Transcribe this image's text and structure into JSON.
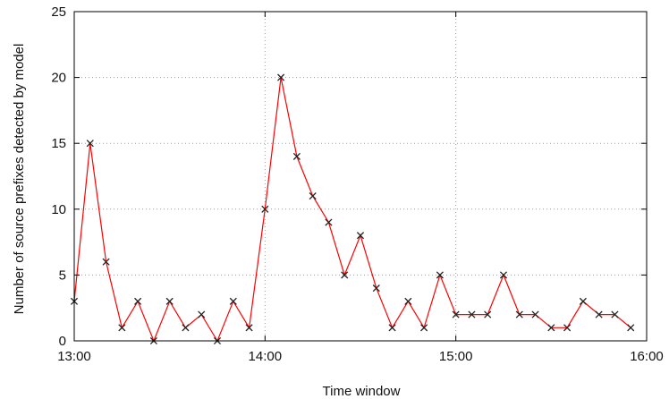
{
  "chart_data": {
    "type": "line",
    "title": "",
    "xlabel": "Time window",
    "ylabel": "Number of source prefixes detected by model",
    "x_unit": "minutes",
    "xlim": [
      780,
      960
    ],
    "ylim": [
      0,
      25
    ],
    "grid": true,
    "x_ticks": [
      {
        "value": 780,
        "label": "13:00"
      },
      {
        "value": 840,
        "label": "14:00"
      },
      {
        "value": 900,
        "label": "15:00"
      },
      {
        "value": 960,
        "label": "16:00"
      }
    ],
    "y_ticks": [
      {
        "value": 0,
        "label": "0"
      },
      {
        "value": 5,
        "label": "5"
      },
      {
        "value": 10,
        "label": "10"
      },
      {
        "value": 15,
        "label": "15"
      },
      {
        "value": 20,
        "label": "20"
      },
      {
        "value": 25,
        "label": "25"
      }
    ],
    "series": [
      {
        "name": "",
        "color": "#ff0000",
        "marker": "x",
        "marker_color": "#222222",
        "points": [
          {
            "x": 780,
            "y": 3
          },
          {
            "x": 785,
            "y": 15
          },
          {
            "x": 790,
            "y": 6
          },
          {
            "x": 795,
            "y": 1
          },
          {
            "x": 800,
            "y": 3
          },
          {
            "x": 805,
            "y": 0
          },
          {
            "x": 810,
            "y": 3
          },
          {
            "x": 815,
            "y": 1
          },
          {
            "x": 820,
            "y": 2
          },
          {
            "x": 825,
            "y": 0
          },
          {
            "x": 830,
            "y": 3
          },
          {
            "x": 835,
            "y": 1
          },
          {
            "x": 840,
            "y": 10
          },
          {
            "x": 845,
            "y": 20
          },
          {
            "x": 850,
            "y": 14
          },
          {
            "x": 855,
            "y": 11
          },
          {
            "x": 860,
            "y": 9
          },
          {
            "x": 865,
            "y": 5
          },
          {
            "x": 870,
            "y": 8
          },
          {
            "x": 875,
            "y": 4
          },
          {
            "x": 880,
            "y": 1
          },
          {
            "x": 885,
            "y": 3
          },
          {
            "x": 890,
            "y": 1
          },
          {
            "x": 895,
            "y": 5
          },
          {
            "x": 900,
            "y": 2
          },
          {
            "x": 905,
            "y": 2
          },
          {
            "x": 910,
            "y": 2
          },
          {
            "x": 915,
            "y": 5
          },
          {
            "x": 920,
            "y": 2
          },
          {
            "x": 925,
            "y": 2
          },
          {
            "x": 930,
            "y": 1
          },
          {
            "x": 935,
            "y": 1
          },
          {
            "x": 940,
            "y": 3
          },
          {
            "x": 945,
            "y": 2
          },
          {
            "x": 950,
            "y": 2
          },
          {
            "x": 955,
            "y": 1
          }
        ]
      }
    ]
  }
}
